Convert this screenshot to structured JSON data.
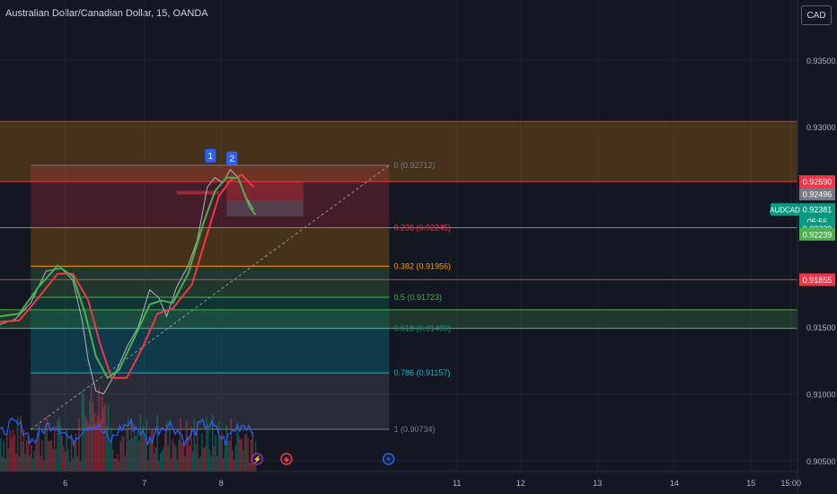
{
  "header": {
    "symbol_title": "Australian Dollar/Canadian Dollar, 15, OANDA",
    "currency": "CAD"
  },
  "chart_data": {
    "type": "line",
    "symbol": "AUDCAD",
    "y_range": [
      0.9025,
      0.9395
    ],
    "y_ticks": [
      {
        "value": 0.935,
        "label": "0.93500"
      },
      {
        "value": 0.93,
        "label": "0.93000"
      },
      {
        "value": 0.915,
        "label": "0.91500"
      },
      {
        "value": 0.91,
        "label": "0.91000"
      },
      {
        "value": 0.905,
        "label": "0.90500"
      }
    ],
    "x_ticks": [
      {
        "label": "6",
        "x": 5.9
      },
      {
        "label": "7",
        "x": 6.93
      },
      {
        "label": "8",
        "x": 7.93
      },
      {
        "label": "11",
        "x": 11.0
      },
      {
        "label": "12",
        "x": 11.83
      },
      {
        "label": "13",
        "x": 12.83
      },
      {
        "label": "14",
        "x": 13.83
      },
      {
        "label": "15",
        "x": 14.83
      },
      {
        "label": "15:00",
        "x": 15.35
      }
    ],
    "x_range": [
      5.05,
      15.95
    ],
    "price_labels": [
      {
        "label": "0.92590",
        "value": 0.9259,
        "color": "#f23645"
      },
      {
        "label": "0.92496",
        "value": 0.92496,
        "color": "#787b86"
      },
      {
        "label": "0.92381",
        "value": 0.92381,
        "color": "#089981"
      },
      {
        "label": "05:56",
        "value": 0.92291,
        "color": "#089981"
      },
      {
        "label": "0.92239",
        "value": 0.92239,
        "color": "#089981"
      },
      {
        "label": "0.92239",
        "value": 0.92195,
        "color": "#4caf50"
      },
      {
        "label": "0.91855",
        "value": 0.91855,
        "color": "#f23645"
      }
    ],
    "current_label": "AUDCAD",
    "fibonacci": {
      "x_start": 5.45,
      "x_end": 10.12,
      "levels": [
        {
          "label": "0 (0.92712)",
          "value": 0.92712,
          "color": "#787b86"
        },
        {
          "label": "0.236 (0.92245)",
          "value": 0.92245,
          "color": "#f23645"
        },
        {
          "label": "0.382 (0.91956)",
          "value": 0.91956,
          "color": "#ff9800"
        },
        {
          "label": "0.5 (0.91723)",
          "value": 0.91723,
          "color": "#4caf50"
        },
        {
          "label": "0.618 (0.91490)",
          "value": 0.9149,
          "color": "#089981"
        },
        {
          "label": "0.786 (0.91157)",
          "value": 0.91157,
          "color": "#00bcd4"
        },
        {
          "label": "1 (0.90734)",
          "value": 0.90734,
          "color": "#787b86"
        }
      ]
    },
    "zones": [
      {
        "from": 0.9259,
        "to": 0.9304,
        "color": "#ff9800"
      },
      {
        "from": 0.9149,
        "to": 0.9163,
        "color": "#4caf50"
      }
    ],
    "horizontal_lines": [
      {
        "value": 0.9304,
        "color": "#f23645"
      },
      {
        "value": 0.9259,
        "color": "#f23645"
      },
      {
        "value": 0.92245,
        "color": "#4caf50"
      },
      {
        "value": 0.91855,
        "color": "#f23645"
      },
      {
        "value": 0.9163,
        "color": "#4caf50"
      },
      {
        "value": 0.9149,
        "color": "#4caf50"
      }
    ],
    "markers": [
      {
        "label": "1",
        "x": 7.79,
        "y": 0.9272
      },
      {
        "label": "2",
        "x": 8.07,
        "y": 0.927
      }
    ],
    "events": [
      {
        "x": 8.4,
        "icon": "lightning-icon",
        "color": "#9c27b0",
        "symbol": "⚡"
      },
      {
        "x": 8.78,
        "icon": "flag-icon",
        "color": "#f23645",
        "symbol": "◆"
      },
      {
        "x": 10.11,
        "icon": "au-flag-icon",
        "color": "#2962ff",
        "symbol": "✦"
      }
    ],
    "price_series": [
      {
        "x": 5.05,
        "y": 0.9152
      },
      {
        "x": 5.25,
        "y": 0.9156
      },
      {
        "x": 5.45,
        "y": 0.9168
      },
      {
        "x": 5.65,
        "y": 0.9192
      },
      {
        "x": 5.85,
        "y": 0.9194
      },
      {
        "x": 6.0,
        "y": 0.9185
      },
      {
        "x": 6.12,
        "y": 0.9155
      },
      {
        "x": 6.2,
        "y": 0.9125
      },
      {
        "x": 6.3,
        "y": 0.9102
      },
      {
        "x": 6.4,
        "y": 0.91
      },
      {
        "x": 6.55,
        "y": 0.9115
      },
      {
        "x": 6.7,
        "y": 0.9135
      },
      {
        "x": 6.85,
        "y": 0.915
      },
      {
        "x": 7.0,
        "y": 0.9178
      },
      {
        "x": 7.12,
        "y": 0.9172
      },
      {
        "x": 7.22,
        "y": 0.9158
      },
      {
        "x": 7.35,
        "y": 0.918
      },
      {
        "x": 7.5,
        "y": 0.9196
      },
      {
        "x": 7.62,
        "y": 0.9215
      },
      {
        "x": 7.75,
        "y": 0.9255
      },
      {
        "x": 7.85,
        "y": 0.9262
      },
      {
        "x": 7.95,
        "y": 0.9258
      },
      {
        "x": 8.05,
        "y": 0.9268
      },
      {
        "x": 8.15,
        "y": 0.9262
      },
      {
        "x": 8.25,
        "y": 0.9248
      },
      {
        "x": 8.35,
        "y": 0.9238
      }
    ],
    "ma_green": [
      {
        "x": 5.05,
        "y": 0.9158
      },
      {
        "x": 5.3,
        "y": 0.916
      },
      {
        "x": 5.55,
        "y": 0.918
      },
      {
        "x": 5.8,
        "y": 0.9196
      },
      {
        "x": 6.0,
        "y": 0.9188
      },
      {
        "x": 6.15,
        "y": 0.9162
      },
      {
        "x": 6.3,
        "y": 0.9128
      },
      {
        "x": 6.45,
        "y": 0.9112
      },
      {
        "x": 6.6,
        "y": 0.9118
      },
      {
        "x": 6.8,
        "y": 0.9142
      },
      {
        "x": 7.0,
        "y": 0.9167
      },
      {
        "x": 7.15,
        "y": 0.917
      },
      {
        "x": 7.3,
        "y": 0.9168
      },
      {
        "x": 7.5,
        "y": 0.919
      },
      {
        "x": 7.7,
        "y": 0.9228
      },
      {
        "x": 7.85,
        "y": 0.9252
      },
      {
        "x": 8.0,
        "y": 0.9262
      },
      {
        "x": 8.15,
        "y": 0.9262
      },
      {
        "x": 8.3,
        "y": 0.924
      },
      {
        "x": 8.38,
        "y": 0.9234
      }
    ],
    "ma_red": [
      {
        "x": 5.05,
        "y": 0.9154
      },
      {
        "x": 5.3,
        "y": 0.9155
      },
      {
        "x": 5.55,
        "y": 0.9172
      },
      {
        "x": 5.8,
        "y": 0.919
      },
      {
        "x": 6.0,
        "y": 0.919
      },
      {
        "x": 6.2,
        "y": 0.917
      },
      {
        "x": 6.35,
        "y": 0.9138
      },
      {
        "x": 6.5,
        "y": 0.9112
      },
      {
        "x": 6.7,
        "y": 0.9112
      },
      {
        "x": 6.9,
        "y": 0.9134
      },
      {
        "x": 7.1,
        "y": 0.916
      },
      {
        "x": 7.3,
        "y": 0.9164
      },
      {
        "x": 7.55,
        "y": 0.9182
      },
      {
        "x": 7.75,
        "y": 0.922
      },
      {
        "x": 7.9,
        "y": 0.9248
      },
      {
        "x": 8.05,
        "y": 0.926
      },
      {
        "x": 8.2,
        "y": 0.9264
      },
      {
        "x": 8.35,
        "y": 0.9255
      }
    ]
  }
}
